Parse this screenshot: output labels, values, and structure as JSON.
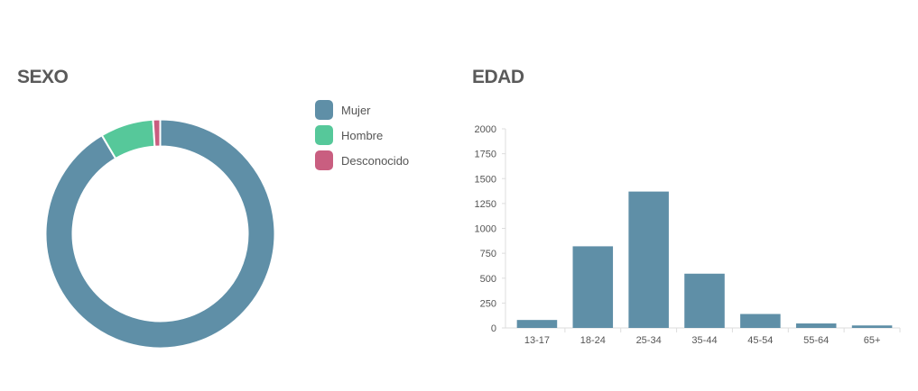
{
  "colors": {
    "mujer": "#5f8fa7",
    "hombre": "#56c89a",
    "desconocido": "#c95e80",
    "bar": "#5f8fa7",
    "title": "#5a5a5a",
    "axis": "#dddddd"
  },
  "chart_data": [
    {
      "type": "pie",
      "variant": "donut",
      "title": "SEXO",
      "legend_position": "right",
      "categories": [
        "Mujer",
        "Hombre",
        "Desconocido"
      ],
      "values": [
        91.5,
        7.5,
        1.0
      ],
      "unit": "percent",
      "colors": [
        "#5f8fa7",
        "#56c89a",
        "#c95e80"
      ]
    },
    {
      "type": "bar",
      "title": "EDAD",
      "categories": [
        "13-17",
        "18-24",
        "25-34",
        "35-44",
        "45-54",
        "55-64",
        "65+"
      ],
      "values": [
        80,
        820,
        1370,
        545,
        140,
        45,
        25
      ],
      "xlabel": "",
      "ylabel": "",
      "ylim": [
        0,
        2000
      ],
      "yticks": [
        "0",
        "250",
        "500",
        "750",
        "1000",
        "1250",
        "1500",
        "1750",
        "2000"
      ],
      "grid": false
    }
  ]
}
